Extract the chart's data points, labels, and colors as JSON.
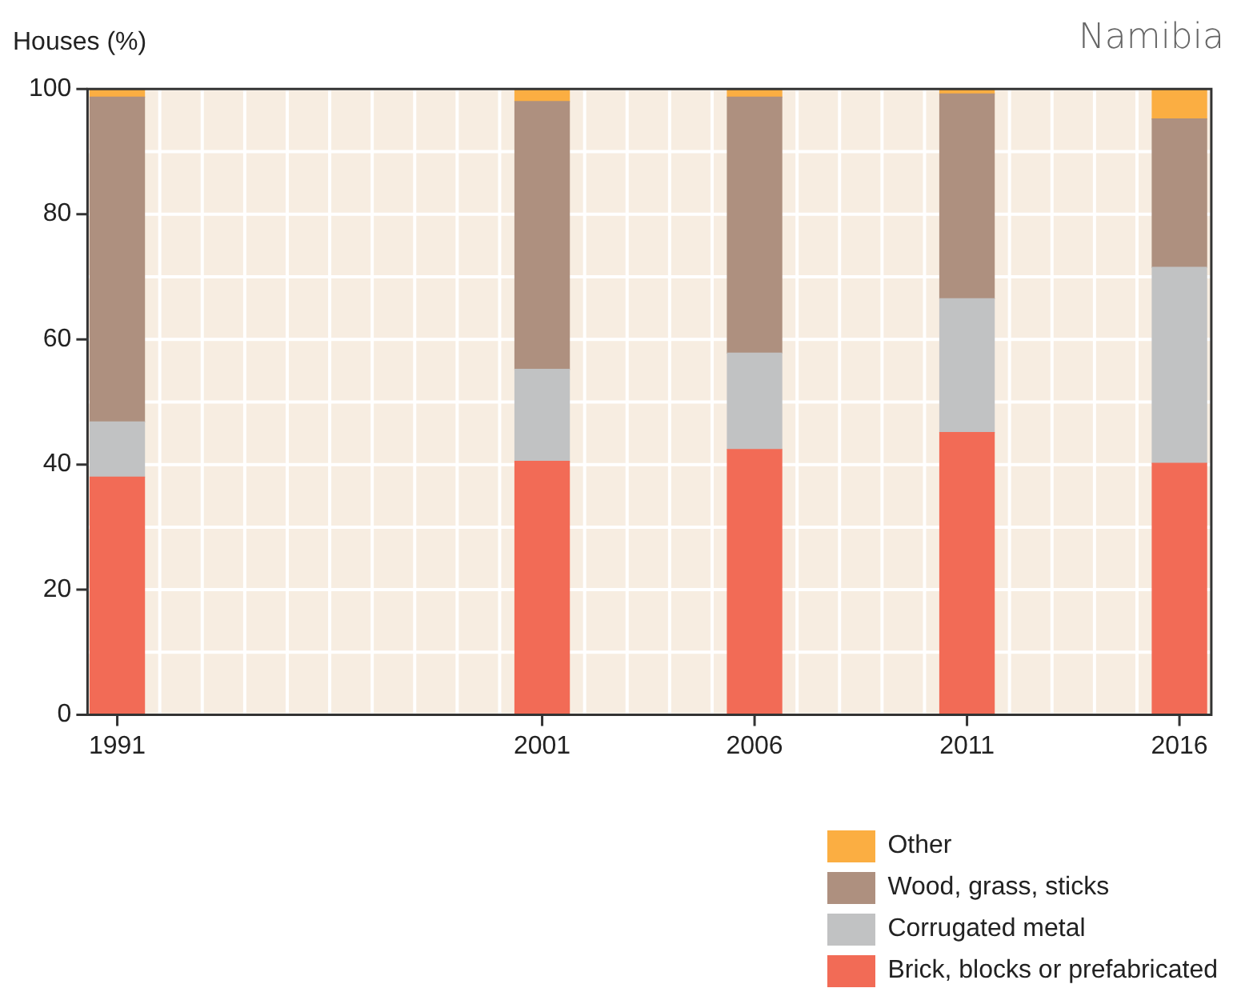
{
  "chart_data": {
    "type": "bar",
    "title": "Namibia",
    "ylabel": "Houses (%)",
    "x": [
      1991,
      2001,
      2006,
      2011,
      2016
    ],
    "stacked": true,
    "series": [
      {
        "name": "Brick, blocks or prefabricated",
        "color": "#f26b56",
        "values": [
          38,
          40.5,
          42.4,
          45.1,
          40.2
        ]
      },
      {
        "name": "Corrugated metal",
        "color": "#c1c2c3",
        "values": [
          8.8,
          14.7,
          15.4,
          21.4,
          31.3
        ]
      },
      {
        "name": "Wood, grass, sticks",
        "color": "#ae907f",
        "values": [
          51.9,
          42.8,
          40.9,
          32.7,
          23.7
        ]
      },
      {
        "name": "Other",
        "color": "#fbae42",
        "values": [
          1.3,
          2,
          1.3,
          0.8,
          4.8
        ]
      }
    ],
    "xlim": [
      1990.3,
      2016.75
    ],
    "xticks": [
      1991,
      {
        "value": 1992,
        "label": null
      },
      {
        "value": 1993,
        "label": null
      },
      {
        "value": 1994,
        "label": null
      },
      {
        "value": 1995,
        "label": null
      },
      {
        "value": 1996,
        "label": null
      },
      {
        "value": 1997,
        "label": null
      },
      {
        "value": 1998,
        "label": null
      },
      {
        "value": 1999,
        "label": null
      },
      {
        "value": 2000,
        "label": null
      },
      2001,
      {
        "value": 2002,
        "label": null
      },
      {
        "value": 2003,
        "label": null
      },
      {
        "value": 2004,
        "label": null
      },
      {
        "value": 2005,
        "label": null
      },
      2006,
      {
        "value": 2007,
        "label": null
      },
      {
        "value": 2008,
        "label": null
      },
      {
        "value": 2009,
        "label": null
      },
      {
        "value": 2010,
        "label": null
      },
      2011,
      {
        "value": 2012,
        "label": null
      },
      {
        "value": 2013,
        "label": null
      },
      {
        "value": 2014,
        "label": null
      },
      {
        "value": 2015,
        "label": null
      },
      2016
    ],
    "ylim": [
      0,
      100
    ],
    "yticks": [
      0,
      {
        "value": 10,
        "label": null
      },
      20,
      {
        "value": 30,
        "label": null
      },
      40,
      {
        "value": 50,
        "label": null
      },
      60,
      {
        "value": 70,
        "label": null
      },
      80,
      {
        "value": 90,
        "label": null
      },
      100
    ],
    "grid": true,
    "legend": "bottom right"
  }
}
